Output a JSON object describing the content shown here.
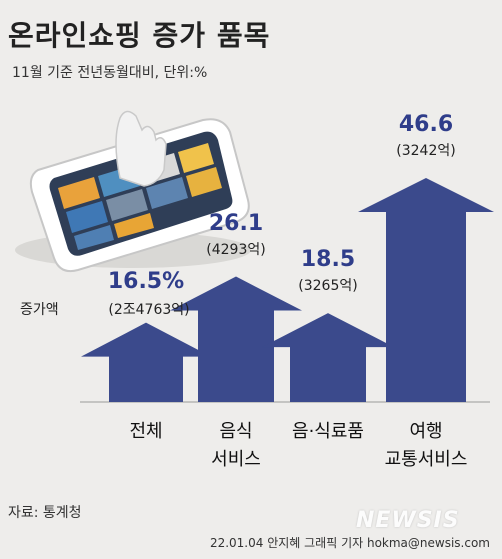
{
  "header": {
    "title": "온라인쇼핑 증가 품목",
    "subtitle": "11월 기준 전년동월대비, 단위:%"
  },
  "chart_data": {
    "type": "bar",
    "title": "온라인쇼핑 증가 품목",
    "subtitle": "11월 기준 전년동월대비, 단위:%",
    "categories": [
      "전체",
      "음식 서비스",
      "음·식료품",
      "여행 교통서비스"
    ],
    "category_lines": [
      [
        "전체"
      ],
      [
        "음식",
        "서비스"
      ],
      [
        "음·식료품"
      ],
      [
        "여행",
        "교통서비스"
      ]
    ],
    "values": [
      16.5,
      26.1,
      18.5,
      46.6
    ],
    "value_labels": [
      "16.5%",
      "26.1",
      "18.5",
      "46.6"
    ],
    "amount_labels": [
      "(2조4763억)",
      "(4293억)",
      "(3265억)",
      "(3242억)"
    ],
    "amount_prefix": "증가액",
    "ylim": [
      0,
      50
    ],
    "grid": false,
    "legend": "none",
    "bar_color": "#3b4a8c",
    "value_color": "#2f3d8a"
  },
  "footer": {
    "source": "자료: 통계청",
    "credit": "22.01.04 안지혜 그래픽 기자 hokma@newsis.com",
    "watermark": "NEWSIS"
  },
  "illustration": {
    "icon": "smartphone-shopping-illustration"
  }
}
